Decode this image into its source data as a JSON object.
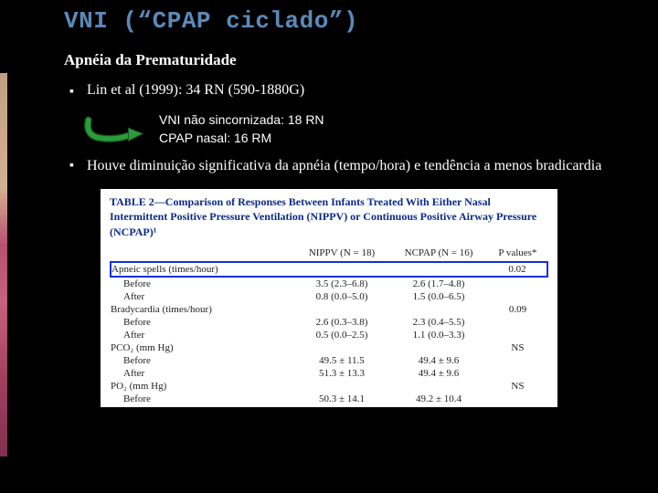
{
  "title": "VNI (“CPAP ciclado”)",
  "subtitle": "Apnéia da Prematuridade",
  "bullet1": "Lin et al (1999): 34 RN (590-1880G)",
  "center": {
    "line1": "VNI não sincornizada: 18 RN",
    "line2": "CPAP nasal: 16 RM"
  },
  "bullet2": "Houve diminuição significativa da apnéia (tempo/hora) e tendência a menos bradicardia",
  "arrow": {
    "stroke": "#2a9d3a",
    "shadow": "#1a5a22"
  },
  "table": {
    "title": "TABLE 2—Comparison of Responses Between Infants Treated With Either Nasal Intermittent Positive Pressure Ventilation (NIPPV) or Continuous Positive Airway Pressure (NCPAP)¹",
    "headers": [
      "",
      "NIPPV (N = 18)",
      "NCPAP (N = 16)",
      "P values*"
    ],
    "rows": [
      {
        "label": "Apneic spells (times/hour)",
        "c1": "",
        "c2": "",
        "c3": "0.02",
        "highlight": true
      },
      {
        "label": "Before",
        "c1": "3.5 (2.3–6.8)",
        "c2": "2.6 (1.7–4.8)",
        "c3": "",
        "indent": true
      },
      {
        "label": "After",
        "c1": "0.8 (0.0–5.0)",
        "c2": "1.5 (0.0–6.5)",
        "c3": "",
        "indent": true
      },
      {
        "label": "Bradycardia (times/hour)",
        "c1": "",
        "c2": "",
        "c3": "0.09"
      },
      {
        "label": "Before",
        "c1": "2.6 (0.3–3.8)",
        "c2": "2.3 (0.4–5.5)",
        "c3": "",
        "indent": true
      },
      {
        "label": "After",
        "c1": "0.5 (0.0–2.5)",
        "c2": "1.1 (0.0–3.3)",
        "c3": "",
        "indent": true
      },
      {
        "label": "PCO₂ (mm Hg)",
        "c1": "",
        "c2": "",
        "c3": "NS"
      },
      {
        "label": "Before",
        "c1": "49.5 ± 11.5",
        "c2": "49.4 ± 9.6",
        "c3": "",
        "indent": true
      },
      {
        "label": "After",
        "c1": "51.3 ± 13.3",
        "c2": "49.4 ± 9.6",
        "c3": "",
        "indent": true
      },
      {
        "label": "PO₂ (mm Hg)",
        "c1": "",
        "c2": "",
        "c3": "NS"
      },
      {
        "label": "Before",
        "c1": "50.3 ± 14.1",
        "c2": "49.2 ± 10.4",
        "c3": "",
        "indent": true
      }
    ]
  }
}
